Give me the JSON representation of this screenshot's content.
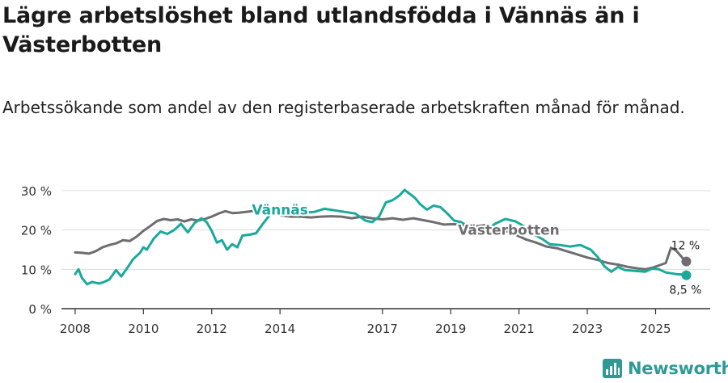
{
  "title": "Lägre arbetslöshet bland utlandsfödda i Vännäs än i Västerbotten",
  "subtitle": "Arbetssökande som andel av den registerbaserade arbetskraften månad för månad.",
  "brand": {
    "name": "Newsworthy",
    "icon": "newsworthy-logo-icon"
  },
  "colors": {
    "vannas": "#1aa99b",
    "vasterbotten": "#6e6e70",
    "grid": "#dcdcdc",
    "axis": "#333333"
  },
  "chart_data": {
    "type": "line",
    "title": "",
    "xlabel": "",
    "ylabel": "",
    "xlim": [
      2007.6,
      2026.6
    ],
    "ylim": [
      0,
      30
    ],
    "grid": true,
    "x_ticks": [
      2008,
      2010,
      2012,
      2014,
      2017,
      2019,
      2021,
      2023,
      2025
    ],
    "y_ticks": [
      0,
      10,
      20,
      30
    ],
    "y_tick_labels": [
      "0 %",
      "10 %",
      "20 %",
      "30 %"
    ],
    "series": [
      {
        "name": "Västerbotten",
        "color": "#6e6e70",
        "end_label": "12 %",
        "points": [
          [
            2008.0,
            14.3
          ],
          [
            2008.2,
            14.2
          ],
          [
            2008.4,
            14.0
          ],
          [
            2008.6,
            14.6
          ],
          [
            2008.8,
            15.6
          ],
          [
            2009.0,
            16.2
          ],
          [
            2009.2,
            16.6
          ],
          [
            2009.4,
            17.4
          ],
          [
            2009.6,
            17.2
          ],
          [
            2009.8,
            18.3
          ],
          [
            2010.0,
            19.8
          ],
          [
            2010.2,
            21.0
          ],
          [
            2010.4,
            22.3
          ],
          [
            2010.6,
            22.8
          ],
          [
            2010.8,
            22.5
          ],
          [
            2011.0,
            22.7
          ],
          [
            2011.2,
            22.2
          ],
          [
            2011.4,
            22.7
          ],
          [
            2011.6,
            22.4
          ],
          [
            2011.8,
            22.8
          ],
          [
            2012.0,
            23.4
          ],
          [
            2012.2,
            24.2
          ],
          [
            2012.4,
            24.8
          ],
          [
            2012.6,
            24.3
          ],
          [
            2012.8,
            24.4
          ],
          [
            2013.0,
            24.6
          ],
          [
            2013.2,
            24.8
          ],
          [
            2013.4,
            24.7
          ],
          [
            2013.6,
            24.4
          ],
          [
            2013.8,
            24.4
          ],
          [
            2014.0,
            23.8
          ],
          [
            2014.3,
            23.4
          ],
          [
            2014.6,
            23.4
          ],
          [
            2014.9,
            23.2
          ],
          [
            2015.2,
            23.4
          ],
          [
            2015.5,
            23.5
          ],
          [
            2015.8,
            23.4
          ],
          [
            2016.1,
            23.0
          ],
          [
            2016.4,
            23.4
          ],
          [
            2016.7,
            23.0
          ],
          [
            2017.0,
            22.7
          ],
          [
            2017.3,
            23.0
          ],
          [
            2017.6,
            22.6
          ],
          [
            2017.9,
            23.0
          ],
          [
            2018.2,
            22.5
          ],
          [
            2018.5,
            22.0
          ],
          [
            2018.8,
            21.4
          ],
          [
            2019.1,
            21.5
          ],
          [
            2019.4,
            21.2
          ],
          [
            2019.7,
            20.9
          ],
          [
            2020.0,
            21.2
          ],
          [
            2020.3,
            20.6
          ],
          [
            2020.6,
            19.8
          ],
          [
            2020.9,
            18.8
          ],
          [
            2021.2,
            17.6
          ],
          [
            2021.5,
            16.8
          ],
          [
            2021.8,
            15.8
          ],
          [
            2022.1,
            15.4
          ],
          [
            2022.4,
            14.6
          ],
          [
            2022.7,
            13.8
          ],
          [
            2023.0,
            13.0
          ],
          [
            2023.3,
            12.4
          ],
          [
            2023.6,
            11.6
          ],
          [
            2023.9,
            11.2
          ],
          [
            2024.2,
            10.6
          ],
          [
            2024.5,
            10.2
          ],
          [
            2024.7,
            10.0
          ],
          [
            2024.9,
            10.4
          ],
          [
            2025.1,
            11.0
          ],
          [
            2025.3,
            11.6
          ],
          [
            2025.45,
            15.5
          ],
          [
            2025.6,
            14.8
          ],
          [
            2025.8,
            12.8
          ],
          [
            2025.9,
            12.0
          ]
        ]
      },
      {
        "name": "Vännäs",
        "color": "#1aa99b",
        "end_label": "8,5 %",
        "points": [
          [
            2008.0,
            8.8
          ],
          [
            2008.1,
            10.0
          ],
          [
            2008.2,
            7.8
          ],
          [
            2008.35,
            6.2
          ],
          [
            2008.5,
            6.8
          ],
          [
            2008.7,
            6.4
          ],
          [
            2008.85,
            6.8
          ],
          [
            2009.0,
            7.4
          ],
          [
            2009.2,
            9.8
          ],
          [
            2009.35,
            8.2
          ],
          [
            2009.5,
            10.0
          ],
          [
            2009.7,
            12.6
          ],
          [
            2009.9,
            14.2
          ],
          [
            2010.0,
            15.6
          ],
          [
            2010.1,
            15.0
          ],
          [
            2010.3,
            17.8
          ],
          [
            2010.5,
            19.6
          ],
          [
            2010.7,
            19.0
          ],
          [
            2010.9,
            20.0
          ],
          [
            2011.1,
            21.6
          ],
          [
            2011.3,
            19.4
          ],
          [
            2011.5,
            21.8
          ],
          [
            2011.7,
            23.0
          ],
          [
            2011.85,
            22.0
          ],
          [
            2012.0,
            19.8
          ],
          [
            2012.15,
            16.8
          ],
          [
            2012.3,
            17.4
          ],
          [
            2012.45,
            15.0
          ],
          [
            2012.6,
            16.4
          ],
          [
            2012.75,
            15.6
          ],
          [
            2012.9,
            18.6
          ],
          [
            2013.1,
            18.8
          ],
          [
            2013.3,
            19.2
          ],
          [
            2013.5,
            21.6
          ],
          [
            2013.7,
            23.8
          ],
          [
            2013.9,
            25.2
          ],
          [
            2014.1,
            24.6
          ],
          [
            2014.4,
            24.0
          ],
          [
            2014.7,
            24.4
          ],
          [
            2015.0,
            24.6
          ],
          [
            2015.3,
            25.4
          ],
          [
            2015.6,
            25.0
          ],
          [
            2015.9,
            24.6
          ],
          [
            2016.2,
            24.2
          ],
          [
            2016.5,
            22.4
          ],
          [
            2016.7,
            22.0
          ],
          [
            2016.9,
            23.4
          ],
          [
            2017.1,
            27.0
          ],
          [
            2017.3,
            27.6
          ],
          [
            2017.5,
            28.8
          ],
          [
            2017.65,
            30.2
          ],
          [
            2017.8,
            29.2
          ],
          [
            2017.95,
            28.2
          ],
          [
            2018.1,
            26.6
          ],
          [
            2018.3,
            25.2
          ],
          [
            2018.5,
            26.2
          ],
          [
            2018.7,
            25.8
          ],
          [
            2018.9,
            24.2
          ],
          [
            2019.1,
            22.4
          ],
          [
            2019.3,
            22.0
          ],
          [
            2019.5,
            21.0
          ],
          [
            2019.7,
            20.2
          ],
          [
            2019.9,
            20.8
          ],
          [
            2020.1,
            20.2
          ],
          [
            2020.3,
            21.6
          ],
          [
            2020.6,
            22.8
          ],
          [
            2020.9,
            22.2
          ],
          [
            2021.1,
            21.2
          ],
          [
            2021.3,
            19.8
          ],
          [
            2021.5,
            18.6
          ],
          [
            2021.7,
            17.6
          ],
          [
            2021.9,
            16.4
          ],
          [
            2022.2,
            16.2
          ],
          [
            2022.5,
            15.8
          ],
          [
            2022.8,
            16.2
          ],
          [
            2023.1,
            15.0
          ],
          [
            2023.3,
            13.2
          ],
          [
            2023.5,
            10.8
          ],
          [
            2023.7,
            9.4
          ],
          [
            2023.9,
            10.6
          ],
          [
            2024.1,
            9.8
          ],
          [
            2024.4,
            9.6
          ],
          [
            2024.7,
            9.4
          ],
          [
            2024.9,
            10.2
          ],
          [
            2025.1,
            10.0
          ],
          [
            2025.3,
            9.2
          ],
          [
            2025.6,
            8.8
          ],
          [
            2025.8,
            8.7
          ],
          [
            2025.9,
            8.5
          ]
        ]
      }
    ]
  }
}
